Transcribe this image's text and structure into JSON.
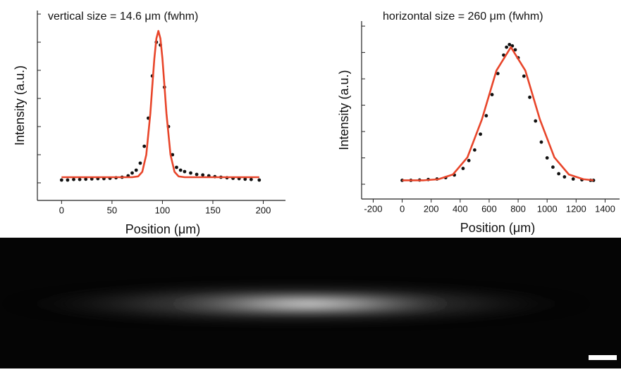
{
  "chart_data": [
    {
      "type": "scatter",
      "title": "vertical size = 14.6 μm (fwhm)",
      "x_label": "Position (μm)",
      "y_label": "Intensity (a.u.)",
      "xlim": [
        -24,
        222
      ],
      "ylim": [
        -0.625,
        6.125
      ],
      "xticks": [
        0,
        50,
        100,
        150,
        200
      ],
      "yticks": [
        0,
        1,
        2,
        3,
        4,
        5,
        6
      ],
      "series": [
        {
          "color": "#111111",
          "x": [
            0,
            6,
            12,
            18,
            24,
            30,
            36,
            42,
            48,
            54,
            60,
            66,
            70,
            74,
            78,
            82,
            86,
            90,
            94,
            98,
            102,
            106,
            110,
            114,
            118,
            122,
            128,
            134,
            140,
            146,
            152,
            158,
            164,
            170,
            176,
            182,
            188,
            196
          ],
          "values": [
            0.1,
            0.1,
            0.12,
            0.12,
            0.13,
            0.14,
            0.15,
            0.15,
            0.16,
            0.18,
            0.2,
            0.25,
            0.35,
            0.45,
            0.7,
            1.3,
            2.3,
            3.8,
            5.0,
            4.9,
            3.4,
            2.0,
            1.0,
            0.55,
            0.45,
            0.4,
            0.35,
            0.3,
            0.28,
            0.25,
            0.22,
            0.2,
            0.18,
            0.16,
            0.15,
            0.13,
            0.12,
            0.1
          ]
        },
        {
          "color": "#e8452a",
          "x": [
            0,
            40,
            70,
            76,
            80,
            84,
            88,
            90,
            92,
            94,
            96,
            98,
            100,
            102,
            104,
            108,
            112,
            116,
            122,
            160,
            196
          ],
          "values": [
            0.2,
            0.2,
            0.2,
            0.23,
            0.39,
            1.0,
            2.46,
            3.46,
            4.42,
            5.13,
            5.4,
            5.13,
            4.42,
            3.46,
            2.46,
            1.0,
            0.39,
            0.23,
            0.2,
            0.2,
            0.2
          ]
        }
      ]
    },
    {
      "type": "scatter",
      "title": "horizontal size = 260 μm (fwhm)",
      "x_label": "Position (μm)",
      "y_label": "Intensity (a.u.)",
      "xlim": [
        -280,
        1500
      ],
      "ylim": [
        -0.56,
        6.19
      ],
      "xticks": [
        -200,
        0,
        200,
        400,
        600,
        800,
        1000,
        1200,
        1400
      ],
      "yticks": [
        0,
        1,
        2,
        3,
        4,
        5,
        6
      ],
      "series": [
        {
          "color": "#111111",
          "x": [
            0,
            60,
            120,
            180,
            240,
            300,
            360,
            420,
            460,
            500,
            540,
            580,
            620,
            660,
            700,
            720,
            740,
            760,
            780,
            800,
            840,
            880,
            920,
            960,
            1000,
            1040,
            1080,
            1120,
            1180,
            1240,
            1300,
            1320
          ],
          "values": [
            0.15,
            0.15,
            0.16,
            0.18,
            0.2,
            0.25,
            0.35,
            0.6,
            0.9,
            1.3,
            1.9,
            2.6,
            3.4,
            4.2,
            4.9,
            5.2,
            5.3,
            5.25,
            5.1,
            4.8,
            4.1,
            3.3,
            2.4,
            1.6,
            1.0,
            0.65,
            0.4,
            0.28,
            0.2,
            0.17,
            0.15,
            0.15
          ]
        },
        {
          "color": "#e8452a",
          "x": [
            0,
            150,
            250,
            350,
            450,
            550,
            650,
            750,
            850,
            950,
            1050,
            1150,
            1250,
            1320
          ],
          "values": [
            0.15,
            0.15,
            0.19,
            0.37,
            1.02,
            2.46,
            4.31,
            5.2,
            4.31,
            2.46,
            1.02,
            0.37,
            0.19,
            0.15
          ]
        }
      ]
    }
  ]
}
